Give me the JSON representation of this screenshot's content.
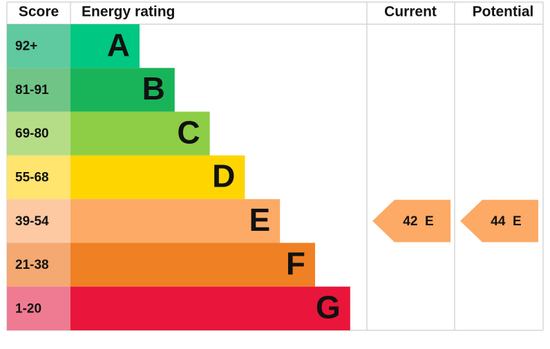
{
  "header": {
    "score": "Score",
    "rating": "Energy rating",
    "current": "Current",
    "potential": "Potential"
  },
  "rows": [
    {
      "score": "92+",
      "rating": "A",
      "score_color": "#5fc9a0",
      "color": "#00c781"
    },
    {
      "score": "81-91",
      "rating": "B",
      "score_color": "#6fc486",
      "color": "#19b459"
    },
    {
      "score": "69-80",
      "rating": "C",
      "score_color": "#b5dd88",
      "color": "#8dce46"
    },
    {
      "score": "55-68",
      "rating": "D",
      "score_color": "#ffe46e",
      "color": "#ffd500"
    },
    {
      "score": "39-54",
      "rating": "E",
      "score_color": "#fdc9a2",
      "color": "#fcaa65"
    },
    {
      "score": "21-38",
      "rating": "F",
      "score_color": "#f4a872",
      "color": "#ef8023"
    },
    {
      "score": "1-20",
      "rating": "G",
      "score_color": "#ef7b93",
      "color": "#e9153b"
    }
  ],
  "current": {
    "score": 42,
    "rating": "E"
  },
  "potential": {
    "score": 44,
    "rating": "E"
  }
}
